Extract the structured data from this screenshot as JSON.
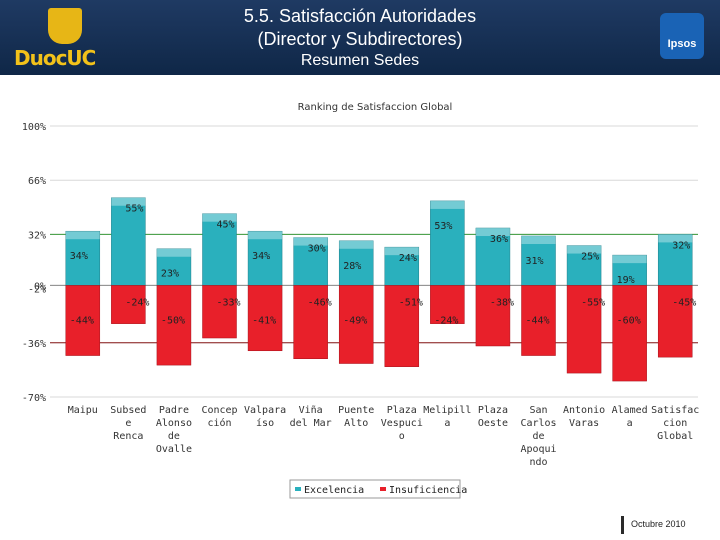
{
  "header": {
    "logo_left_text": "DuocUC",
    "title_line1": "5.5. Satisfacción Autoridades",
    "title_line2": "(Director y Subdirectores)",
    "title_line3": "Resumen Sedes",
    "logo_right_text": "Ipsos"
  },
  "footer": {
    "date": "Octubre 2010"
  },
  "colors": {
    "excelencia": "#2ab0bd",
    "insuficiencia": "#e8202a",
    "header_bg": "#163056"
  },
  "chart_data": {
    "type": "bar",
    "title": "Ranking de Satisfaccion Global",
    "ylim": [
      -70,
      100
    ],
    "yticks": [
      {
        "value": 100,
        "label": "100%"
      },
      {
        "value": 66,
        "label": "66%"
      },
      {
        "value": 32,
        "label": "32%"
      },
      {
        "value": 0,
        "label": "0%"
      },
      {
        "value": -2,
        "label": "-2%"
      },
      {
        "value": -36,
        "label": "-36%"
      },
      {
        "value": -70,
        "label": "-70%"
      }
    ],
    "categories": [
      [
        "Maipu"
      ],
      [
        "Subsed",
        "e",
        "Renca"
      ],
      [
        "Padre",
        "Alonso",
        "de",
        "Ovalle"
      ],
      [
        "Concep",
        "ción"
      ],
      [
        "Valpara",
        "íso"
      ],
      [
        "Viña",
        "del Mar"
      ],
      [
        "Puente",
        "Alto"
      ],
      [
        "Plaza",
        "Vespuci",
        "o"
      ],
      [
        "Melipill",
        "a"
      ],
      [
        "Plaza",
        "Oeste"
      ],
      [
        "San",
        "Carlos",
        "de",
        "Apoqui",
        "ndo"
      ],
      [
        "Antonio",
        "Varas"
      ],
      [
        "Alamed",
        "a"
      ],
      [
        "Satisfac",
        "cion",
        "Global"
      ]
    ],
    "series": [
      {
        "name": "Excelencia",
        "values": [
          34,
          55,
          23,
          45,
          34,
          30,
          28,
          24,
          53,
          36,
          31,
          25,
          19,
          32
        ]
      },
      {
        "name": "Insuficiencia",
        "values": [
          -44,
          -24,
          -50,
          -33,
          -41,
          -46,
          -49,
          -51,
          -24,
          -38,
          -44,
          -55,
          -60,
          -45
        ]
      }
    ],
    "reference_lines": [
      32,
      -36
    ],
    "legend": [
      "Excelencia",
      "Insuficiencia"
    ],
    "legend_position": "bottom-center"
  }
}
